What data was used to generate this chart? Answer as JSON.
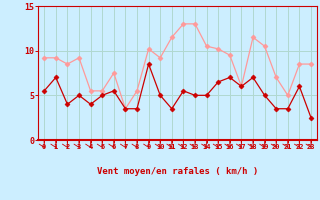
{
  "x": [
    0,
    1,
    2,
    3,
    4,
    5,
    6,
    7,
    8,
    9,
    10,
    11,
    12,
    13,
    14,
    15,
    16,
    17,
    18,
    19,
    20,
    21,
    22,
    23
  ],
  "wind_mean": [
    5.5,
    7.0,
    4.0,
    5.0,
    4.0,
    5.0,
    5.5,
    3.5,
    3.5,
    8.5,
    5.0,
    3.5,
    5.5,
    5.0,
    5.0,
    6.5,
    7.0,
    6.0,
    7.0,
    5.0,
    3.5,
    3.5,
    6.0,
    2.5
  ],
  "wind_gust": [
    9.2,
    9.2,
    8.5,
    9.2,
    5.5,
    5.5,
    7.5,
    3.5,
    5.5,
    10.2,
    9.2,
    11.5,
    13.0,
    13.0,
    10.5,
    10.2,
    9.5,
    6.0,
    11.5,
    10.5,
    7.0,
    5.0,
    8.5,
    8.5
  ],
  "color_mean": "#cc0000",
  "color_gust": "#ff9999",
  "bg_color": "#cceeff",
  "grid_color": "#b0d8d0",
  "xlabel": "Vent moyen/en rafales ( km/h )",
  "xlabel_color": "#cc0000",
  "tick_color": "#cc0000",
  "ylim": [
    0,
    15
  ],
  "yticks": [
    0,
    5,
    10,
    15
  ],
  "figsize": [
    3.2,
    2.0
  ],
  "dpi": 100,
  "marker": "D",
  "markersize": 2.5,
  "linewidth": 0.9
}
